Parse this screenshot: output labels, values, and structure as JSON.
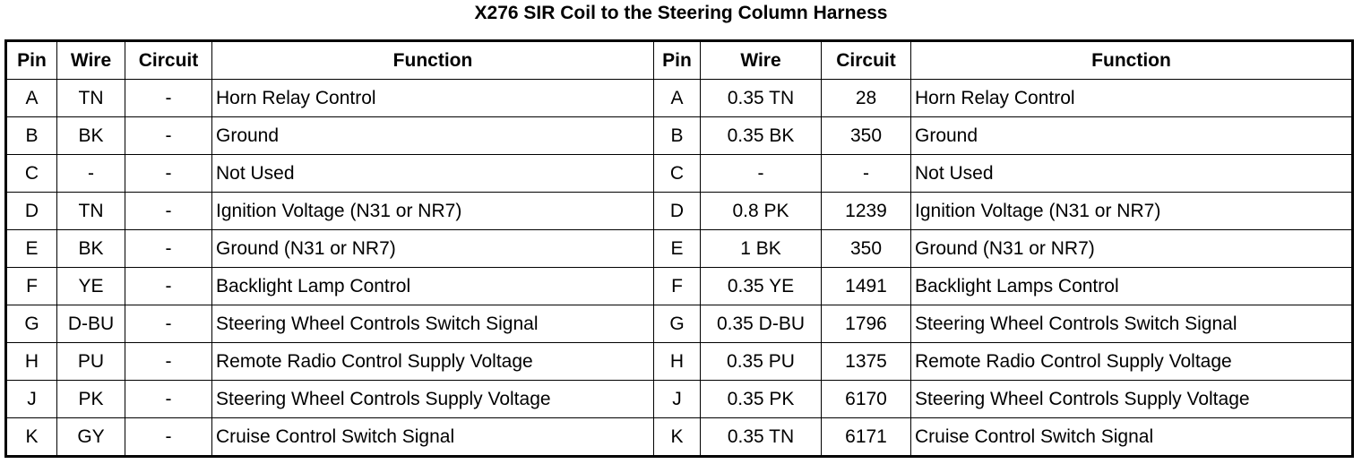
{
  "header": {
    "title": "X276 SIR Coil to the Steering Column Harness"
  },
  "table": {
    "headers": [
      "Pin",
      "Wire",
      "Circuit",
      "Function",
      "Pin",
      "Wire",
      "Circuit",
      "Function"
    ],
    "rows": [
      [
        "A",
        "TN",
        "-",
        "Horn Relay Control",
        "A",
        "0.35 TN",
        "28",
        "Horn Relay Control"
      ],
      [
        "B",
        "BK",
        "-",
        "Ground",
        "B",
        "0.35 BK",
        "350",
        "Ground"
      ],
      [
        "C",
        "-",
        "-",
        "Not Used",
        "C",
        "-",
        "-",
        "Not Used"
      ],
      [
        "D",
        "TN",
        "-",
        "Ignition Voltage (N31 or NR7)",
        "D",
        "0.8 PK",
        "1239",
        "Ignition Voltage (N31 or NR7)"
      ],
      [
        "E",
        "BK",
        "-",
        "Ground (N31 or NR7)",
        "E",
        "1 BK",
        "350",
        "Ground (N31 or NR7)"
      ],
      [
        "F",
        "YE",
        "-",
        "Backlight Lamp Control",
        "F",
        "0.35 YE",
        "1491",
        "Backlight Lamps Control"
      ],
      [
        "G",
        "D-BU",
        "-",
        "Steering Wheel Controls Switch Signal",
        "G",
        "0.35 D-BU",
        "1796",
        "Steering Wheel Controls Switch Signal"
      ],
      [
        "H",
        "PU",
        "-",
        "Remote Radio Control Supply Voltage",
        "H",
        "0.35 PU",
        "1375",
        "Remote Radio Control Supply Voltage"
      ],
      [
        "J",
        "PK",
        "-",
        "Steering Wheel Controls Supply Voltage",
        "J",
        "0.35 PK",
        "6170",
        "Steering Wheel Controls Supply Voltage"
      ],
      [
        "K",
        "GY",
        "-",
        "Cruise Control Switch Signal",
        "K",
        "0.35 TN",
        "6171",
        "Cruise Control Switch Signal"
      ]
    ]
  }
}
